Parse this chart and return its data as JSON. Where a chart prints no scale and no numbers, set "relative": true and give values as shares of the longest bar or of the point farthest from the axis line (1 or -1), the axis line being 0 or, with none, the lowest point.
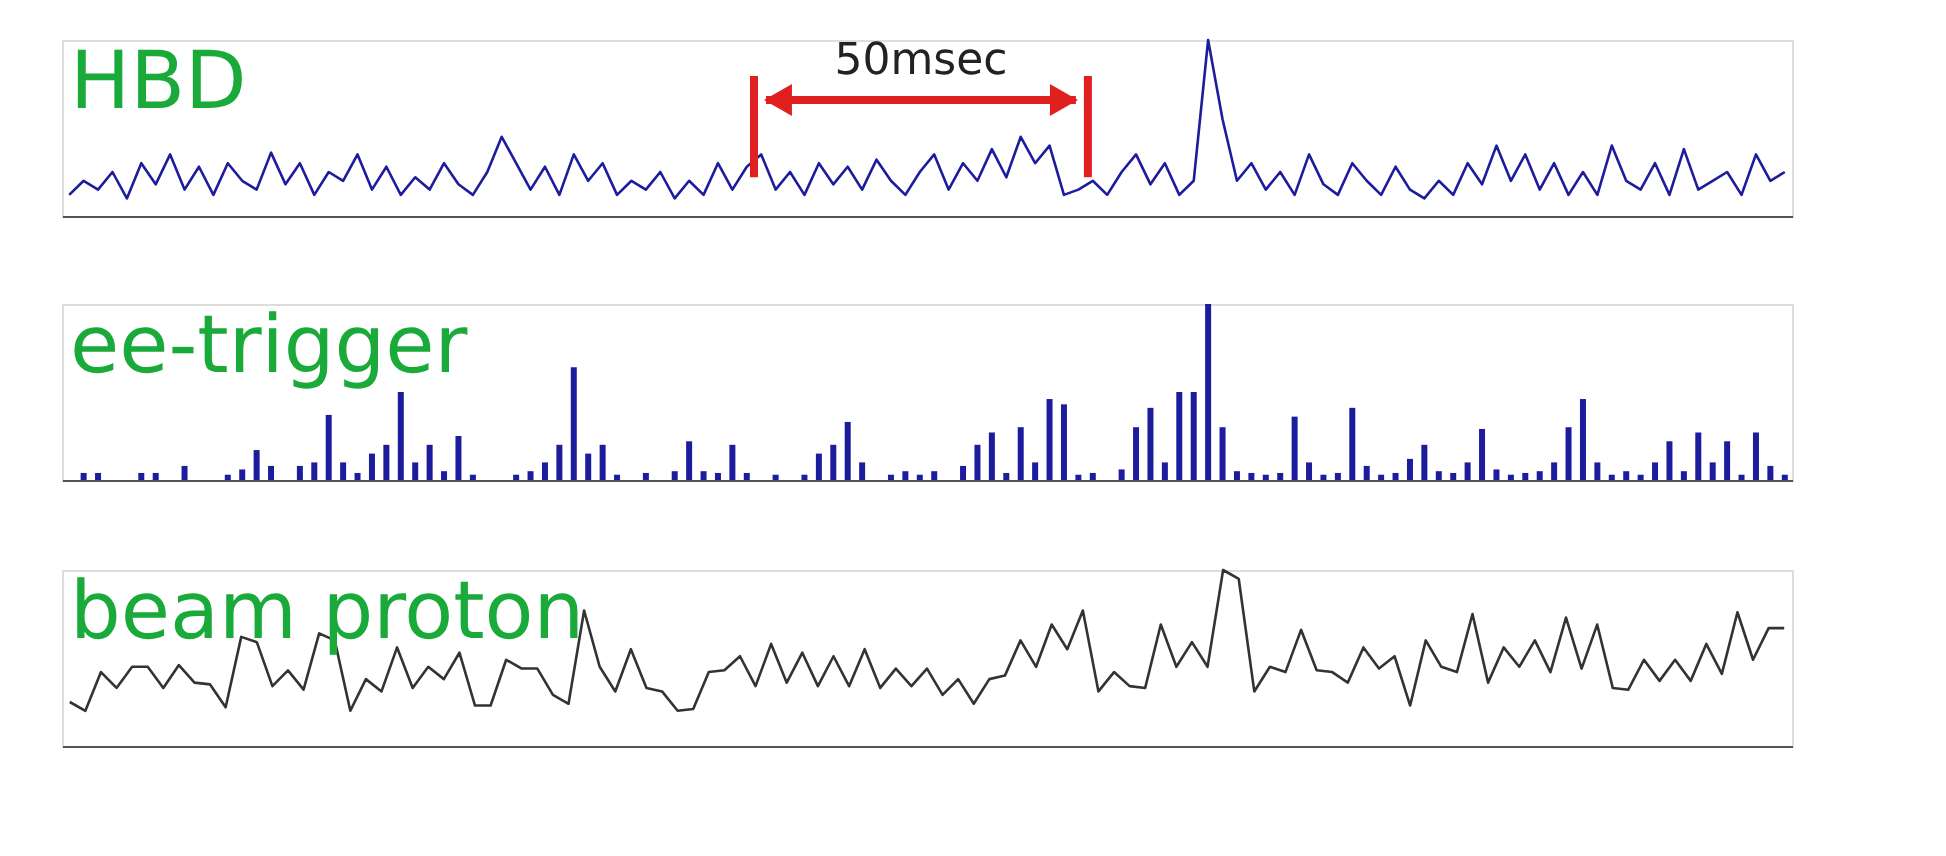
{
  "chart_data": [
    {
      "type": "line",
      "title": "HBD",
      "relative": true,
      "grid": false,
      "tick_labels": false,
      "annotations": [
        "50msec"
      ],
      "categories": [
        null,
        null,
        null,
        null,
        null,
        null,
        null,
        null,
        null,
        null,
        null,
        null,
        null,
        null,
        null,
        null,
        null,
        null,
        null,
        null,
        null,
        null,
        null,
        null,
        null,
        null,
        null,
        null,
        null,
        null,
        null,
        null,
        null,
        null,
        null,
        null,
        null,
        null,
        null,
        null,
        null,
        null,
        null,
        null,
        null,
        null,
        null,
        null,
        null,
        null,
        null,
        null,
        null,
        null,
        null,
        null,
        null,
        null,
        null,
        null,
        null,
        null,
        null,
        null,
        null,
        null,
        null,
        null,
        null,
        null,
        null,
        null,
        null,
        null,
        null,
        null,
        null,
        null,
        null,
        null,
        null,
        null,
        null,
        null,
        null,
        null,
        null,
        null,
        null,
        null,
        null,
        null,
        null,
        null,
        null,
        null,
        null,
        null,
        null,
        null,
        null,
        null,
        null,
        null,
        null,
        null,
        null,
        null,
        null,
        null,
        null,
        null,
        null,
        null,
        null,
        null,
        null,
        null,
        null,
        null
      ],
      "series": [
        {
          "color": "#1c1c9c",
          "values": [
            0.12,
            0.2,
            0.15,
            0.25,
            0.1,
            0.3,
            0.18,
            0.35,
            0.15,
            0.28,
            0.12,
            0.3,
            0.2,
            0.15,
            0.36,
            0.18,
            0.3,
            0.12,
            0.25,
            0.2,
            0.35,
            0.15,
            0.28,
            0.12,
            0.22,
            0.15,
            0.3,
            0.18,
            0.12,
            0.25,
            0.45,
            0.3,
            0.15,
            0.28,
            0.12,
            0.35,
            0.2,
            0.3,
            0.12,
            0.2,
            0.15,
            0.25,
            0.1,
            0.2,
            0.12,
            0.3,
            0.15,
            0.28,
            0.35,
            0.15,
            0.25,
            0.12,
            0.3,
            0.18,
            0.28,
            0.15,
            0.32,
            0.2,
            0.12,
            0.25,
            0.35,
            0.15,
            0.3,
            0.2,
            0.38,
            0.22,
            0.45,
            0.3,
            0.4,
            0.12,
            0.15,
            0.2,
            0.12,
            0.25,
            0.35,
            0.18,
            0.3,
            0.12,
            0.2,
            1.0,
            0.55,
            0.2,
            0.3,
            0.15,
            0.25,
            0.12,
            0.35,
            0.18,
            0.12,
            0.3,
            0.2,
            0.12,
            0.28,
            0.15,
            0.1,
            0.2,
            0.12,
            0.3,
            0.18,
            0.4,
            0.2,
            0.35,
            0.15,
            0.3,
            0.12,
            0.25,
            0.12,
            0.4,
            0.2,
            0.15,
            0.3,
            0.12,
            0.38,
            0.15,
            0.2,
            0.25,
            0.12,
            0.35,
            0.2,
            0.25
          ]
        }
      ]
    },
    {
      "type": "bar",
      "title": "ee-trigger",
      "relative": true,
      "grid": false,
      "tick_labels": false,
      "categories": [
        null,
        null,
        null,
        null,
        null,
        null,
        null,
        null,
        null,
        null,
        null,
        null,
        null,
        null,
        null,
        null,
        null,
        null,
        null,
        null,
        null,
        null,
        null,
        null,
        null,
        null,
        null,
        null,
        null,
        null,
        null,
        null,
        null,
        null,
        null,
        null,
        null,
        null,
        null,
        null,
        null,
        null,
        null,
        null,
        null,
        null,
        null,
        null,
        null,
        null,
        null,
        null,
        null,
        null,
        null,
        null,
        null,
        null,
        null,
        null,
        null,
        null,
        null,
        null,
        null,
        null,
        null,
        null,
        null,
        null,
        null,
        null,
        null,
        null,
        null,
        null,
        null,
        null,
        null,
        null,
        null,
        null,
        null,
        null,
        null,
        null,
        null,
        null,
        null,
        null,
        null,
        null,
        null,
        null,
        null,
        null,
        null,
        null,
        null,
        null,
        null,
        null,
        null,
        null,
        null,
        null,
        null,
        null,
        null,
        null,
        null,
        null,
        null,
        null,
        null,
        null,
        null,
        null,
        null,
        null
      ],
      "series": [
        {
          "color": "#1c1c9c",
          "values": [
            0,
            0.04,
            0.04,
            0,
            0,
            0.04,
            0.04,
            0,
            0.08,
            0,
            0,
            0.03,
            0.06,
            0.17,
            0.08,
            0,
            0.08,
            0.1,
            0.37,
            0.1,
            0.04,
            0.15,
            0.2,
            0.5,
            0.1,
            0.2,
            0.05,
            0.25,
            0.03,
            0,
            0,
            0.03,
            0.05,
            0.1,
            0.2,
            0.64,
            0.15,
            0.2,
            0.03,
            0,
            0.04,
            0,
            0.05,
            0.22,
            0.05,
            0.04,
            0.2,
            0.04,
            0,
            0.03,
            0,
            0.03,
            0.15,
            0.2,
            0.33,
            0.1,
            0,
            0.03,
            0.05,
            0.03,
            0.05,
            0,
            0.08,
            0.2,
            0.27,
            0.04,
            0.3,
            0.1,
            0.46,
            0.43,
            0.03,
            0.04,
            0,
            0.06,
            0.3,
            0.41,
            0.1,
            0.5,
            0.5,
            1.0,
            0.3,
            0.05,
            0.04,
            0.03,
            0.04,
            0.36,
            0.1,
            0.03,
            0.04,
            0.41,
            0.08,
            0.03,
            0.04,
            0.12,
            0.2,
            0.05,
            0.04,
            0.1,
            0.29,
            0.06,
            0.03,
            0.04,
            0.05,
            0.1,
            0.3,
            0.46,
            0.1,
            0.03,
            0.05,
            0.03,
            0.1,
            0.22,
            0.05,
            0.27,
            0.1,
            0.22,
            0.03,
            0.27,
            0.08,
            0.03
          ]
        }
      ]
    },
    {
      "type": "line",
      "title": "beam proton",
      "relative": true,
      "grid": false,
      "tick_labels": false,
      "categories": [
        null,
        null,
        null,
        null,
        null,
        null,
        null,
        null,
        null,
        null,
        null,
        null,
        null,
        null,
        null,
        null,
        null,
        null,
        null,
        null,
        null,
        null,
        null,
        null,
        null,
        null,
        null,
        null,
        null,
        null,
        null,
        null,
        null,
        null,
        null,
        null,
        null,
        null,
        null,
        null,
        null,
        null,
        null,
        null,
        null,
        null,
        null,
        null,
        null,
        null,
        null,
        null,
        null,
        null,
        null,
        null,
        null,
        null,
        null,
        null,
        null,
        null,
        null,
        null,
        null,
        null,
        null,
        null,
        null,
        null,
        null,
        null,
        null,
        null,
        null,
        null,
        null,
        null,
        null,
        null,
        null,
        null,
        null,
        null,
        null,
        null,
        null,
        null,
        null,
        null,
        null,
        null,
        null,
        null,
        null,
        null,
        null,
        null,
        null,
        null,
        null,
        null,
        null,
        null,
        null,
        null,
        null,
        null,
        null,
        null,
        null
      ],
      "series": [
        {
          "color": "#333333",
          "values": [
            0.25,
            0.2,
            0.42,
            0.33,
            0.45,
            0.45,
            0.33,
            0.46,
            0.36,
            0.35,
            0.22,
            0.62,
            0.59,
            0.34,
            0.43,
            0.32,
            0.64,
            0.6,
            0.2,
            0.38,
            0.31,
            0.56,
            0.33,
            0.45,
            0.38,
            0.53,
            0.23,
            0.23,
            0.49,
            0.44,
            0.44,
            0.29,
            0.24,
            0.77,
            0.45,
            0.31,
            0.55,
            0.33,
            0.31,
            0.2,
            0.21,
            0.42,
            0.43,
            0.51,
            0.34,
            0.58,
            0.36,
            0.53,
            0.34,
            0.51,
            0.34,
            0.55,
            0.33,
            0.44,
            0.34,
            0.44,
            0.29,
            0.38,
            0.24,
            0.38,
            0.4,
            0.6,
            0.45,
            0.69,
            0.55,
            0.77,
            0.31,
            0.42,
            0.34,
            0.33,
            0.69,
            0.45,
            0.59,
            0.45,
            1.0,
            0.95,
            0.31,
            0.45,
            0.42,
            0.66,
            0.43,
            0.42,
            0.36,
            0.56,
            0.44,
            0.51,
            0.23,
            0.6,
            0.45,
            0.42,
            0.75,
            0.36,
            0.56,
            0.45,
            0.6,
            0.42,
            0.73,
            0.44,
            0.69,
            0.33,
            0.32,
            0.49,
            0.37,
            0.49,
            0.37,
            0.58,
            0.41,
            0.76,
            0.49,
            0.67,
            0.67
          ]
        }
      ]
    }
  ]
}
